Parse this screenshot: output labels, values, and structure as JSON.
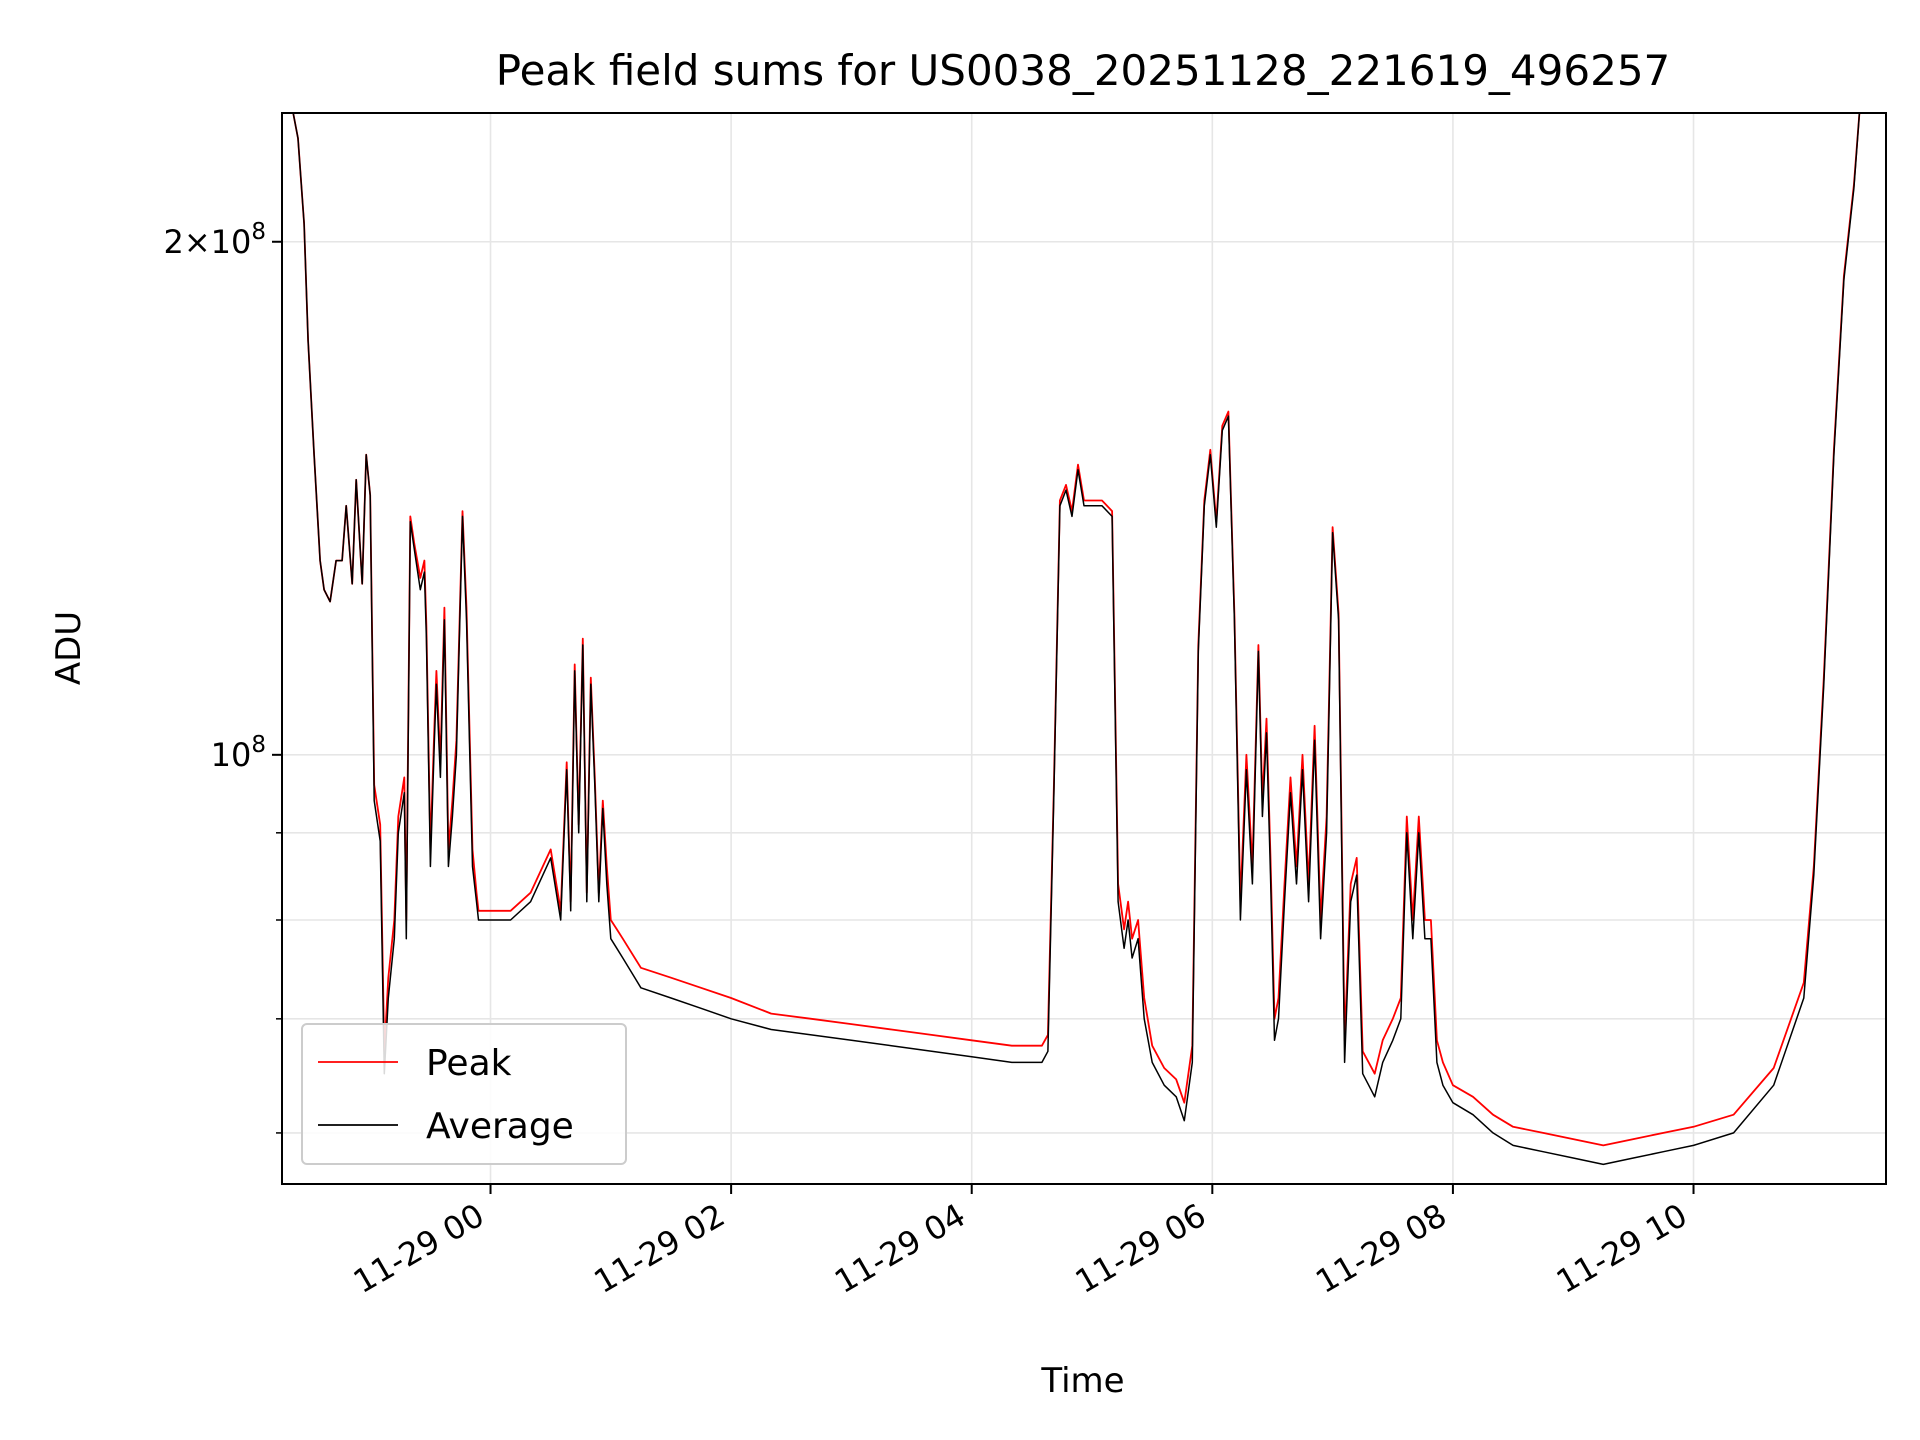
{
  "chart_data": {
    "type": "line",
    "title": "Peak field sums for US0038_20251128_221619_496257",
    "xlabel": "Time",
    "ylabel": "ADU",
    "yscale": "log",
    "xlim": [
      "2025-11-28 22:16",
      "2025-11-29 11:36"
    ],
    "ylim": [
      56000000,
      238000000
    ],
    "grid": true,
    "legend_position": "lower-left",
    "x_ticks": [
      {
        "value": "2025-11-29 00:00",
        "label": "11-29 00"
      },
      {
        "value": "2025-11-29 02:00",
        "label": "11-29 02"
      },
      {
        "value": "2025-11-29 04:00",
        "label": "11-29 04"
      },
      {
        "value": "2025-11-29 06:00",
        "label": "11-29 06"
      },
      {
        "value": "2025-11-29 08:00",
        "label": "11-29 08"
      },
      {
        "value": "2025-11-29 10:00",
        "label": "11-29 10"
      }
    ],
    "y_major_ticks": [
      {
        "value": 100000000,
        "mantissa": "",
        "exponent": "8"
      },
      {
        "value": 200000000,
        "mantissa": "2",
        "exponent": "8"
      }
    ],
    "y_minor_ticks": [
      60000000,
      70000000,
      80000000,
      90000000
    ],
    "series": [
      {
        "name": "Peak",
        "color": "#ff0000"
      },
      {
        "name": "Average",
        "color": "#000000"
      }
    ],
    "x": [
      "2025-11-28 22:17",
      "2025-11-28 22:21",
      "2025-11-28 22:24",
      "2025-11-28 22:27",
      "2025-11-28 22:29",
      "2025-11-28 22:32",
      "2025-11-28 22:35",
      "2025-11-28 22:37",
      "2025-11-28 22:40",
      "2025-11-28 22:43",
      "2025-11-28 22:46",
      "2025-11-28 22:48",
      "2025-11-28 22:51",
      "2025-11-28 22:53",
      "2025-11-28 22:56",
      "2025-11-28 22:58",
      "2025-11-28 23:00",
      "2025-11-28 23:02",
      "2025-11-28 23:05",
      "2025-11-28 23:07",
      "2025-11-28 23:09",
      "2025-11-28 23:12",
      "2025-11-28 23:14",
      "2025-11-28 23:17",
      "2025-11-28 23:18",
      "2025-11-28 23:20",
      "2025-11-28 23:22",
      "2025-11-28 23:25",
      "2025-11-28 23:27",
      "2025-11-28 23:28",
      "2025-11-28 23:30",
      "2025-11-28 23:32",
      "2025-11-28 23:33",
      "2025-11-28 23:35",
      "2025-11-28 23:37",
      "2025-11-28 23:39",
      "2025-11-28 23:41",
      "2025-11-28 23:43",
      "2025-11-28 23:46",
      "2025-11-28 23:48",
      "2025-11-28 23:51",
      "2025-11-28 23:53",
      "2025-11-28 23:54",
      "2025-11-28 23:56",
      "2025-11-28 23:58",
      "2025-11-29 00:00",
      "2025-11-29 00:02",
      "2025-11-29 00:05",
      "2025-11-29 00:10",
      "2025-11-29 00:20",
      "2025-11-29 00:30",
      "2025-11-29 00:35",
      "2025-11-29 00:38",
      "2025-11-29 00:40",
      "2025-11-29 00:42",
      "2025-11-29 00:44",
      "2025-11-29 00:46",
      "2025-11-29 00:48",
      "2025-11-29 00:50",
      "2025-11-29 00:52",
      "2025-11-29 00:54",
      "2025-11-29 00:56",
      "2025-11-29 00:58",
      "2025-11-29 01:00",
      "2025-11-29 01:03",
      "2025-11-29 01:06",
      "2025-11-29 01:15",
      "2025-11-29 01:30",
      "2025-11-29 01:45",
      "2025-11-29 02:00",
      "2025-11-29 02:20",
      "2025-11-29 02:40",
      "2025-11-29 03:00",
      "2025-11-29 03:20",
      "2025-11-29 03:40",
      "2025-11-29 04:00",
      "2025-11-29 04:20",
      "2025-11-29 04:35",
      "2025-11-29 04:38",
      "2025-11-29 04:41",
      "2025-11-29 04:44",
      "2025-11-29 04:47",
      "2025-11-29 04:50",
      "2025-11-29 04:53",
      "2025-11-29 04:56",
      "2025-11-29 05:00",
      "2025-11-29 05:05",
      "2025-11-29 05:10",
      "2025-11-29 05:13",
      "2025-11-29 05:16",
      "2025-11-29 05:18",
      "2025-11-29 05:20",
      "2025-11-29 05:23",
      "2025-11-29 05:26",
      "2025-11-29 05:30",
      "2025-11-29 05:36",
      "2025-11-29 05:42",
      "2025-11-29 05:46",
      "2025-11-29 05:50",
      "2025-11-29 05:53",
      "2025-11-29 05:56",
      "2025-11-29 05:59",
      "2025-11-29 06:02",
      "2025-11-29 06:05",
      "2025-11-29 06:08",
      "2025-11-29 06:11",
      "2025-11-29 06:14",
      "2025-11-29 06:17",
      "2025-11-29 06:20",
      "2025-11-29 06:23",
      "2025-11-29 06:25",
      "2025-11-29 06:27",
      "2025-11-29 06:29",
      "2025-11-29 06:31",
      "2025-11-29 06:33",
      "2025-11-29 06:36",
      "2025-11-29 06:39",
      "2025-11-29 06:42",
      "2025-11-29 06:45",
      "2025-11-29 06:48",
      "2025-11-29 06:51",
      "2025-11-29 06:54",
      "2025-11-29 06:57",
      "2025-11-29 07:00",
      "2025-11-29 07:03",
      "2025-11-29 07:06",
      "2025-11-29 07:09",
      "2025-11-29 07:12",
      "2025-11-29 07:15",
      "2025-11-29 07:18",
      "2025-11-29 07:21",
      "2025-11-29 07:25",
      "2025-11-29 07:30",
      "2025-11-29 07:34",
      "2025-11-29 07:37",
      "2025-11-29 07:40",
      "2025-11-29 07:43",
      "2025-11-29 07:46",
      "2025-11-29 07:49",
      "2025-11-29 07:52",
      "2025-11-29 07:55",
      "2025-11-29 08:00",
      "2025-11-29 08:10",
      "2025-11-29 08:20",
      "2025-11-29 08:30",
      "2025-11-29 08:45",
      "2025-11-29 09:00",
      "2025-11-29 09:15",
      "2025-11-29 09:30",
      "2025-11-29 09:45",
      "2025-11-29 10:00",
      "2025-11-29 10:20",
      "2025-11-29 10:40",
      "2025-11-29 10:55",
      "2025-11-29 11:00",
      "2025-11-29 11:05",
      "2025-11-29 11:10",
      "2025-11-29 11:15",
      "2025-11-29 11:20",
      "2025-11-29 11:23",
      "2025-11-29 11:25",
      "2025-11-29 11:27",
      "2025-11-29 11:30",
      "2025-11-29 11:33",
      "2025-11-29 11:36"
    ],
    "average_values": [
      240000000,
      240000000,
      230000000,
      205000000,
      175000000,
      150000000,
      130000000,
      125000000,
      123000000,
      130000000,
      130000000,
      140000000,
      126000000,
      145000000,
      126000000,
      150000000,
      142000000,
      94000000,
      89000000,
      65000000,
      72000000,
      78000000,
      90000000,
      95000000,
      78000000,
      137000000,
      132000000,
      125000000,
      128000000,
      117000000,
      86000000,
      102000000,
      110000000,
      97000000,
      120000000,
      86000000,
      92000000,
      100000000,
      138000000,
      120000000,
      86000000,
      82000000,
      80000000,
      80000000,
      80000000,
      80000000,
      80000000,
      80000000,
      80000000,
      82000000,
      87000000,
      80000000,
      98000000,
      81000000,
      112000000,
      90000000,
      116000000,
      82000000,
      110000000,
      96000000,
      82000000,
      93000000,
      84000000,
      78000000,
      77000000,
      76000000,
      73000000,
      72000000,
      71000000,
      70000000,
      69000000,
      68500000,
      68000000,
      67500000,
      67000000,
      66500000,
      66000000,
      66000000,
      67000000,
      95000000,
      140000000,
      143000000,
      138000000,
      147000000,
      140000000,
      140000000,
      140000000,
      138000000,
      82000000,
      77000000,
      80000000,
      76000000,
      78000000,
      70000000,
      66000000,
      64000000,
      63000000,
      61000000,
      66000000,
      115000000,
      140000000,
      150000000,
      136000000,
      155000000,
      158000000,
      120000000,
      80000000,
      98000000,
      84000000,
      115000000,
      92000000,
      103000000,
      85000000,
      68000000,
      70000000,
      82000000,
      95000000,
      84000000,
      98000000,
      82000000,
      102000000,
      78000000,
      90000000,
      135000000,
      120000000,
      66000000,
      82000000,
      85000000,
      65000000,
      64000000,
      63000000,
      66000000,
      68000000,
      70000000,
      90000000,
      78000000,
      90000000,
      78000000,
      78000000,
      66000000,
      64000000,
      62500000,
      61500000,
      60000000,
      59000000,
      58500000,
      58000000,
      57500000,
      58000000,
      58500000,
      59000000,
      60000000,
      64000000,
      72000000,
      85000000,
      110000000,
      150000000,
      190000000,
      215000000,
      240000000,
      240000000
    ],
    "peak_values": [
      240000000,
      240000000,
      230000000,
      205000000,
      175000000,
      150000000,
      130000000,
      125000000,
      123000000,
      130000000,
      130000000,
      140000000,
      126000000,
      145000000,
      126000000,
      150000000,
      142000000,
      96000000,
      91000000,
      67000000,
      74000000,
      80000000,
      92000000,
      97000000,
      80000000,
      138000000,
      133000000,
      127000000,
      130000000,
      119000000,
      88000000,
      104000000,
      112000000,
      99000000,
      122000000,
      88000000,
      94000000,
      102000000,
      139000000,
      122000000,
      88000000,
      83000000,
      81000000,
      81000000,
      81000000,
      81000000,
      81000000,
      81000000,
      81000000,
      83000000,
      88000000,
      81000000,
      99000000,
      82000000,
      113000000,
      91000000,
      117000000,
      83000000,
      111000000,
      97000000,
      83000000,
      94000000,
      86000000,
      80000000,
      79000000,
      78000000,
      75000000,
      74000000,
      73000000,
      72000000,
      70500000,
      70000000,
      69500000,
      69000000,
      68500000,
      68000000,
      67500000,
      67500000,
      68500000,
      96000000,
      141000000,
      144000000,
      139000000,
      148000000,
      141000000,
      141000000,
      141000000,
      139000000,
      84000000,
      79000000,
      82000000,
      78000000,
      80000000,
      72000000,
      67500000,
      65500000,
      64500000,
      62500000,
      67500000,
      116000000,
      141000000,
      151000000,
      137000000,
      156000000,
      159000000,
      121000000,
      82000000,
      100000000,
      86000000,
      116000000,
      94000000,
      105000000,
      87000000,
      70000000,
      72000000,
      84000000,
      97000000,
      86000000,
      100000000,
      84000000,
      104000000,
      80000000,
      92000000,
      136000000,
      121000000,
      68000000,
      84000000,
      87000000,
      67000000,
      66000000,
      65000000,
      68000000,
      70000000,
      72000000,
      92000000,
      80000000,
      92000000,
      80000000,
      80000000,
      68000000,
      66000000,
      64000000,
      63000000,
      61500000,
      60500000,
      60000000,
      59500000,
      59000000,
      59500000,
      60000000,
      60500000,
      61500000,
      65500000,
      73500000,
      86000000,
      111000000,
      151000000,
      191000000,
      216000000,
      240000000,
      240000000
    ]
  }
}
